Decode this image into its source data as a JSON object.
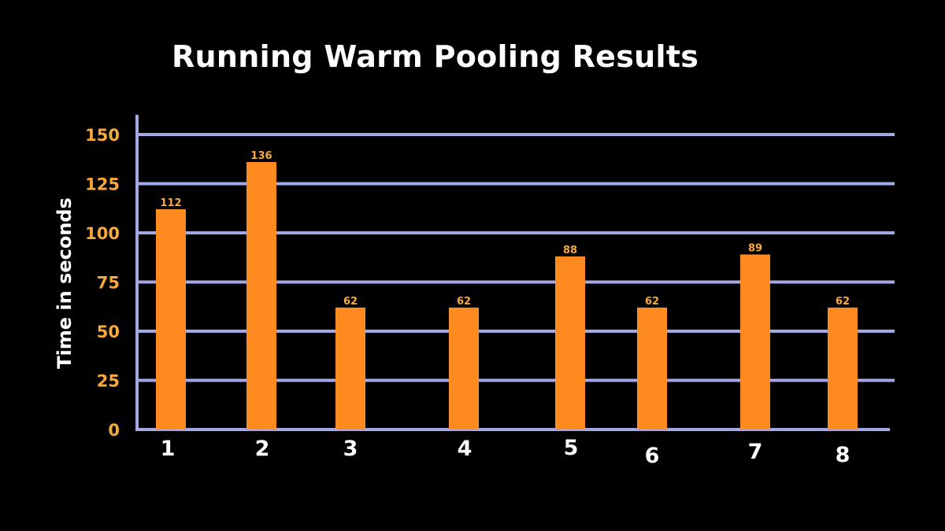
{
  "chart_data": {
    "type": "bar",
    "title": "Running Warm Pooling Results",
    "xlabel": "",
    "ylabel": "Time in seconds",
    "categories": [
      "1",
      "2",
      "3",
      "4",
      "5",
      "6",
      "7",
      "8"
    ],
    "values": [
      112,
      136,
      62,
      62,
      88,
      62,
      89,
      62
    ],
    "data_labels": [
      "112",
      "136",
      "62",
      "62",
      "88",
      "62",
      "89",
      "62"
    ],
    "yticks": [
      0,
      25,
      50,
      75,
      100,
      125,
      150
    ],
    "ylim": [
      0,
      160
    ],
    "grid": true,
    "legend": "none",
    "colors": {
      "background": "#000000",
      "bar": "#ff8a1f",
      "grid": "#a4a9e6",
      "axis": "#a4a9e6",
      "ytick_text": "#f7a93b",
      "data_label_text": "#f7a93b",
      "xtick_text": "#ffffff",
      "title_text": "#ffffff"
    }
  }
}
